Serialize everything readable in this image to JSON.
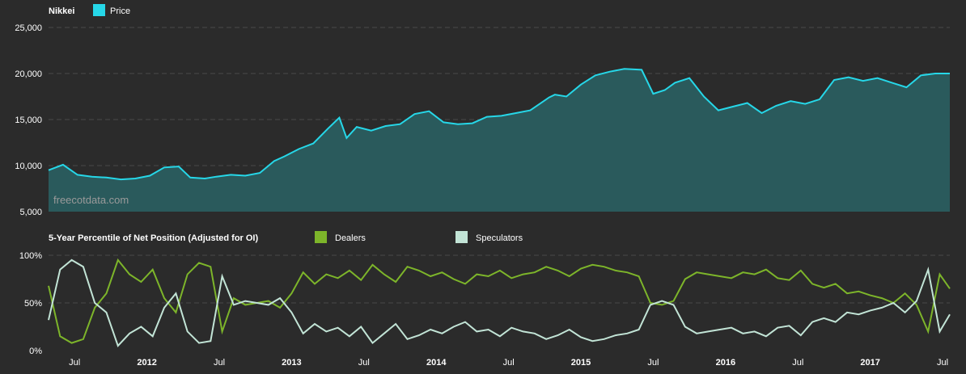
{
  "chart_data": [
    {
      "type": "area",
      "title": "Nikkei",
      "watermark": "freecotdata.com",
      "legend": [
        {
          "name": "Price",
          "color": "#26d7e8"
        }
      ],
      "ylim": [
        5000,
        25000
      ],
      "yticks": [
        "5,000",
        "10,000",
        "15,000",
        "20,000",
        "25,000"
      ],
      "ytick_values": [
        5000,
        10000,
        15000,
        20000,
        25000
      ],
      "grid": true,
      "colors": {
        "line": "#26d7e8",
        "fill": "#2a5a5c"
      },
      "series": [
        {
          "name": "Price",
          "x": [
            2011.32,
            2011.42,
            2011.52,
            2011.62,
            2011.72,
            2011.82,
            2011.92,
            2012.02,
            2012.12,
            2012.22,
            2012.3,
            2012.4,
            2012.48,
            2012.58,
            2012.68,
            2012.78,
            2012.88,
            2012.95,
            2013.05,
            2013.15,
            2013.25,
            2013.33,
            2013.38,
            2013.45,
            2013.55,
            2013.65,
            2013.75,
            2013.85,
            2013.95,
            2014.05,
            2014.15,
            2014.25,
            2014.35,
            2014.45,
            2014.55,
            2014.65,
            2014.78,
            2014.82,
            2014.9,
            2015.0,
            2015.1,
            2015.2,
            2015.3,
            2015.42,
            2015.5,
            2015.58,
            2015.65,
            2015.75,
            2015.85,
            2015.95,
            2016.05,
            2016.15,
            2016.25,
            2016.35,
            2016.45,
            2016.55,
            2016.65,
            2016.75,
            2016.85,
            2016.95,
            2017.05,
            2017.15,
            2017.25,
            2017.35,
            2017.45,
            2017.55
          ],
          "values": [
            9500,
            10100,
            9000,
            8800,
            8700,
            8500,
            8600,
            8900,
            9800,
            9900,
            8700,
            8600,
            8800,
            9000,
            8900,
            9200,
            10500,
            11000,
            11800,
            12400,
            14000,
            15200,
            13000,
            14200,
            13800,
            14300,
            14500,
            15600,
            15900,
            14700,
            14500,
            14600,
            15300,
            15400,
            15700,
            16000,
            17400,
            17700,
            17500,
            18800,
            19800,
            20200,
            20500,
            20400,
            17800,
            18200,
            19000,
            19500,
            17500,
            16000,
            16400,
            16800,
            15700,
            16500,
            17000,
            16700,
            17200,
            19300,
            19600,
            19200,
            19500,
            19000,
            18500,
            19800,
            20000,
            20000
          ]
        }
      ]
    },
    {
      "type": "line",
      "title": "5-Year Percentile of Net Position (Adjusted for OI)",
      "legend": [
        {
          "name": "Dealers",
          "color": "#7db52a"
        },
        {
          "name": "Speculators",
          "color": "#c2e4d6"
        }
      ],
      "ylim": [
        0,
        100
      ],
      "yticks": [
        "0%",
        "50%",
        "100%"
      ],
      "ytick_values": [
        0,
        50,
        100
      ],
      "grid": true,
      "series": [
        {
          "name": "Dealers",
          "color": "#7db52a",
          "x": [
            2011.32,
            2011.4,
            2011.48,
            2011.56,
            2011.64,
            2011.72,
            2011.8,
            2011.88,
            2011.96,
            2012.04,
            2012.12,
            2012.2,
            2012.28,
            2012.36,
            2012.44,
            2012.52,
            2012.6,
            2012.68,
            2012.76,
            2012.84,
            2012.92,
            2013.0,
            2013.08,
            2013.16,
            2013.24,
            2013.32,
            2013.4,
            2013.48,
            2013.56,
            2013.64,
            2013.72,
            2013.8,
            2013.88,
            2013.96,
            2014.04,
            2014.12,
            2014.2,
            2014.28,
            2014.36,
            2014.44,
            2014.52,
            2014.6,
            2014.68,
            2014.76,
            2014.84,
            2014.92,
            2015.0,
            2015.08,
            2015.16,
            2015.24,
            2015.32,
            2015.4,
            2015.48,
            2015.56,
            2015.64,
            2015.72,
            2015.8,
            2015.88,
            2015.96,
            2016.04,
            2016.12,
            2016.2,
            2016.28,
            2016.36,
            2016.44,
            2016.52,
            2016.6,
            2016.68,
            2016.76,
            2016.84,
            2016.92,
            2017.0,
            2017.08,
            2017.16,
            2017.24,
            2017.32,
            2017.4,
            2017.48,
            2017.55
          ],
          "values": [
            68,
            15,
            8,
            12,
            45,
            60,
            95,
            80,
            72,
            85,
            55,
            40,
            80,
            92,
            88,
            20,
            55,
            48,
            50,
            52,
            45,
            60,
            82,
            70,
            80,
            76,
            84,
            74,
            90,
            80,
            72,
            88,
            84,
            78,
            82,
            75,
            70,
            80,
            78,
            84,
            76,
            80,
            82,
            88,
            84,
            78,
            86,
            90,
            88,
            84,
            82,
            78,
            50,
            48,
            52,
            75,
            82,
            80,
            78,
            76,
            82,
            80,
            85,
            76,
            74,
            84,
            70,
            66,
            70,
            60,
            62,
            58,
            55,
            50,
            60,
            48,
            20,
            80,
            65
          ]
        },
        {
          "name": "Speculators",
          "color": "#c2e4d6",
          "x": [
            2011.32,
            2011.4,
            2011.48,
            2011.56,
            2011.64,
            2011.72,
            2011.8,
            2011.88,
            2011.96,
            2012.04,
            2012.12,
            2012.2,
            2012.28,
            2012.36,
            2012.44,
            2012.52,
            2012.6,
            2012.68,
            2012.76,
            2012.84,
            2012.92,
            2013.0,
            2013.08,
            2013.16,
            2013.24,
            2013.32,
            2013.4,
            2013.48,
            2013.56,
            2013.64,
            2013.72,
            2013.8,
            2013.88,
            2013.96,
            2014.04,
            2014.12,
            2014.2,
            2014.28,
            2014.36,
            2014.44,
            2014.52,
            2014.6,
            2014.68,
            2014.76,
            2014.84,
            2014.92,
            2015.0,
            2015.08,
            2015.16,
            2015.24,
            2015.32,
            2015.4,
            2015.48,
            2015.56,
            2015.64,
            2015.72,
            2015.8,
            2015.88,
            2015.96,
            2016.04,
            2016.12,
            2016.2,
            2016.28,
            2016.36,
            2016.44,
            2016.52,
            2016.6,
            2016.68,
            2016.76,
            2016.84,
            2016.92,
            2017.0,
            2017.08,
            2017.16,
            2017.24,
            2017.32,
            2017.4,
            2017.48,
            2017.55
          ],
          "values": [
            32,
            85,
            95,
            88,
            50,
            40,
            5,
            18,
            25,
            15,
            45,
            60,
            20,
            8,
            10,
            78,
            48,
            52,
            50,
            48,
            55,
            40,
            18,
            28,
            20,
            24,
            15,
            25,
            8,
            18,
            28,
            12,
            16,
            22,
            18,
            25,
            30,
            20,
            22,
            15,
            24,
            20,
            18,
            12,
            16,
            22,
            14,
            10,
            12,
            16,
            18,
            22,
            48,
            52,
            48,
            25,
            18,
            20,
            22,
            24,
            18,
            20,
            15,
            24,
            26,
            16,
            30,
            34,
            30,
            40,
            38,
            42,
            45,
            50,
            40,
            52,
            85,
            20,
            38
          ]
        }
      ],
      "xticks": [
        {
          "label": "Jul",
          "x": 2011.5,
          "bold": false
        },
        {
          "label": "2012",
          "x": 2012.0,
          "bold": true
        },
        {
          "label": "Jul",
          "x": 2012.5,
          "bold": false
        },
        {
          "label": "2013",
          "x": 2013.0,
          "bold": true
        },
        {
          "label": "Jul",
          "x": 2013.5,
          "bold": false
        },
        {
          "label": "2014",
          "x": 2014.0,
          "bold": true
        },
        {
          "label": "Jul",
          "x": 2014.5,
          "bold": false
        },
        {
          "label": "2015",
          "x": 2015.0,
          "bold": true
        },
        {
          "label": "Jul",
          "x": 2015.5,
          "bold": false
        },
        {
          "label": "2016",
          "x": 2016.0,
          "bold": true
        },
        {
          "label": "Jul",
          "x": 2016.5,
          "bold": false
        },
        {
          "label": "2017",
          "x": 2017.0,
          "bold": true
        },
        {
          "label": "Jul",
          "x": 2017.5,
          "bold": false
        }
      ],
      "xlim": [
        2011.32,
        2017.55
      ]
    }
  ]
}
